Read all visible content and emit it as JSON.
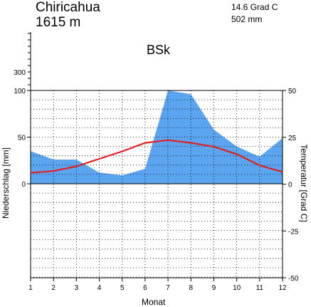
{
  "header": {
    "station": "Chiricahua",
    "elevation": "1615 m",
    "mean_temp": "14.6 Grad C",
    "annual_precip": "502 mm",
    "climate_class": "BSk"
  },
  "chart_data": {
    "type": "area",
    "xlabel": "Monat",
    "ylabel_left": "Niederschlag [mm]",
    "ylabel_right": "Temperatur [Grad C]",
    "categories": [
      1,
      2,
      3,
      4,
      5,
      6,
      7,
      8,
      9,
      10,
      11,
      12
    ],
    "xlim": [
      1,
      12
    ],
    "ylim_left": [
      -150,
      100
    ],
    "ylim_right": [
      -50,
      50
    ],
    "extra_left_ticks": [
      300
    ],
    "series": [
      {
        "axis": "left",
        "kind": "area",
        "color": "#5aa4f0",
        "values": [
          35,
          26,
          26,
          12,
          9,
          16,
          100,
          96,
          58,
          40,
          29,
          49
        ]
      },
      {
        "axis": "right",
        "kind": "line",
        "color": "#e02020",
        "values": [
          6,
          7,
          9.5,
          13.5,
          17.5,
          22,
          23.5,
          22,
          20,
          16,
          10,
          6.5
        ]
      }
    ],
    "grid": true
  }
}
